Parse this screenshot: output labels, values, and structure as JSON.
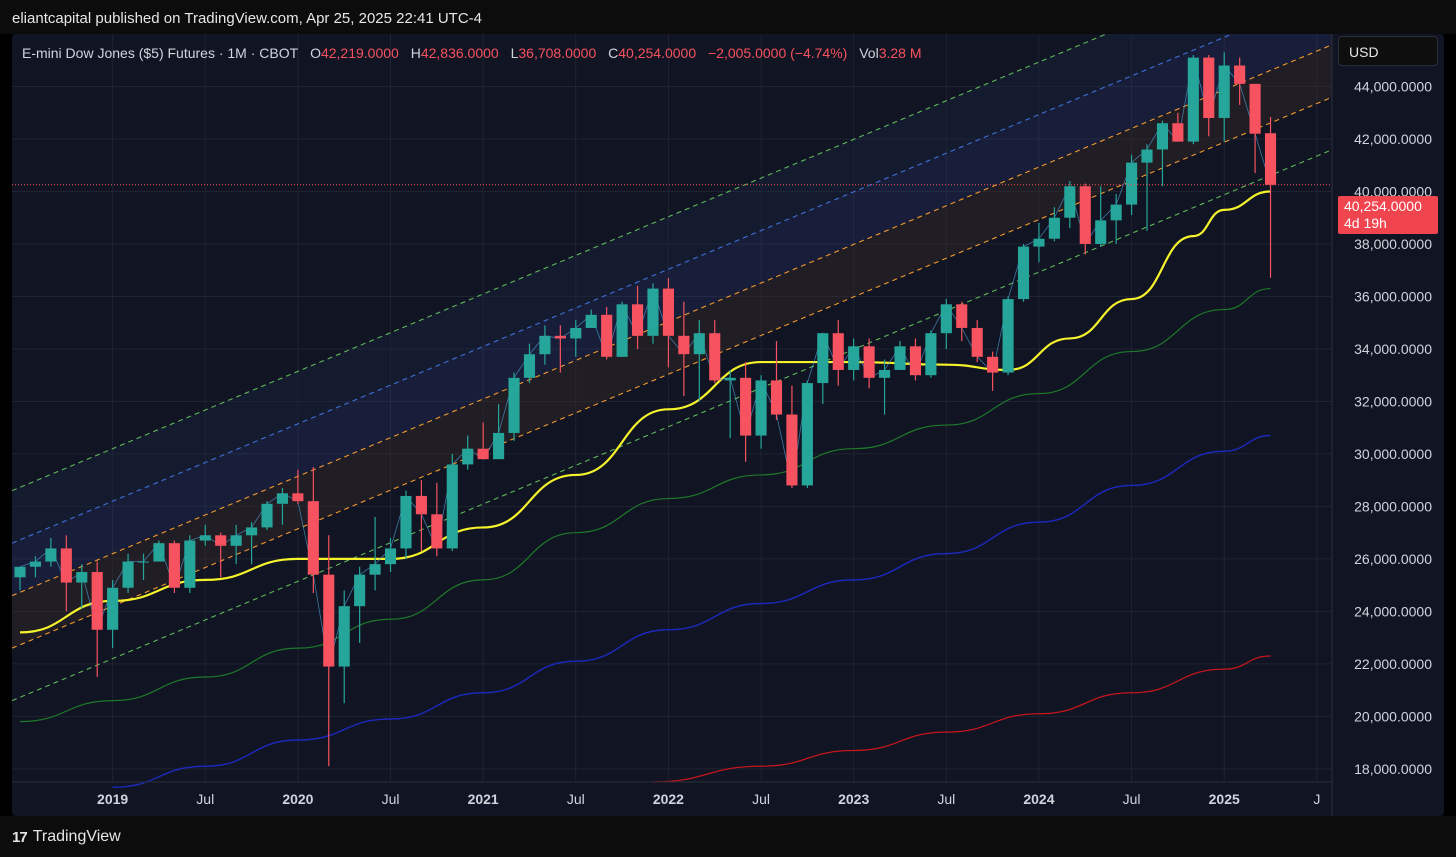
{
  "publisher_line": "eliantcapital published on TradingView.com, Apr 25, 2025 22:41 UTC-4",
  "legend": {
    "symbol": "E-mini Dow Jones ($5) Futures · 1M · CBOT",
    "open_label": "O",
    "open": "42,219.0000",
    "high_label": "H",
    "high": "42,836.0000",
    "low_label": "L",
    "low": "36,708.0000",
    "close_label": "C",
    "close": "40,254.0000",
    "change": "−2,005.0000 (−4.74%)",
    "vol_label": "Vol",
    "vol": "3.28 M"
  },
  "currency_button": "USD",
  "last_price_tag": {
    "price": "40,254.0000",
    "countdown": "4d 19h"
  },
  "branding": "TradingView",
  "colors": {
    "up": "#26a69a",
    "down": "#f7525f",
    "ma_yellow": "#f5f32c",
    "ma_green": "#1e7a2a",
    "ma_blue": "#1b28b8",
    "ma_red": "#c4161c",
    "channel_outer": "#5db85a",
    "channel_mid": "#3f6fd8",
    "channel_inner": "#f29a2e",
    "background": "#111422"
  },
  "chart_data": {
    "type": "candlestick",
    "title": "E-mini Dow Jones ($5) Futures · 1M · CBOT",
    "y_ticks": [
      "44,000.0000",
      "42,000.0000",
      "40,000.0000",
      "38,000.0000",
      "36,000.0000",
      "34,000.0000",
      "32,000.0000",
      "30,000.0000",
      "28,000.0000",
      "26,000.0000",
      "24,000.0000",
      "22,000.0000",
      "20,000.0000",
      "18,000.0000"
    ],
    "y_tick_values": [
      44000,
      42000,
      40000,
      38000,
      36000,
      34000,
      32000,
      30000,
      28000,
      26000,
      24000,
      22000,
      20000,
      18000
    ],
    "ylim": [
      17500,
      46000
    ],
    "x_ticks": [
      {
        "label": "2019",
        "year": true,
        "date": "2019-01"
      },
      {
        "label": "Jul",
        "year": false,
        "date": "2019-07"
      },
      {
        "label": "2020",
        "year": true,
        "date": "2020-01"
      },
      {
        "label": "Jul",
        "year": false,
        "date": "2020-07"
      },
      {
        "label": "2021",
        "year": true,
        "date": "2021-01"
      },
      {
        "label": "Jul",
        "year": false,
        "date": "2021-07"
      },
      {
        "label": "2022",
        "year": true,
        "date": "2022-01"
      },
      {
        "label": "Jul",
        "year": false,
        "date": "2022-07"
      },
      {
        "label": "2023",
        "year": true,
        "date": "2023-01"
      },
      {
        "label": "Jul",
        "year": false,
        "date": "2023-07"
      },
      {
        "label": "2024",
        "year": true,
        "date": "2024-01"
      },
      {
        "label": "Jul",
        "year": false,
        "date": "2024-07"
      },
      {
        "label": "2025",
        "year": true,
        "date": "2025-01"
      },
      {
        "label": "J",
        "year": false,
        "date": "2025-07"
      }
    ],
    "x_range": [
      "2018-07",
      "2025-08"
    ],
    "candles": [
      {
        "t": "2018-07",
        "o": 25300,
        "h": 25600,
        "l": 24800,
        "c": 25700
      },
      {
        "t": "2018-08",
        "o": 25700,
        "h": 26100,
        "l": 25300,
        "c": 25900
      },
      {
        "t": "2018-09",
        "o": 25900,
        "h": 26800,
        "l": 25700,
        "c": 26400
      },
      {
        "t": "2018-10",
        "o": 26400,
        "h": 26900,
        "l": 24000,
        "c": 25100
      },
      {
        "t": "2018-11",
        "o": 25100,
        "h": 25800,
        "l": 24100,
        "c": 25500
      },
      {
        "t": "2018-12",
        "o": 25500,
        "h": 25900,
        "l": 21500,
        "c": 23300
      },
      {
        "t": "2019-01",
        "o": 23300,
        "h": 25200,
        "l": 22600,
        "c": 24900
      },
      {
        "t": "2019-02",
        "o": 24900,
        "h": 26200,
        "l": 24700,
        "c": 25900
      },
      {
        "t": "2019-03",
        "o": 25900,
        "h": 26200,
        "l": 25200,
        "c": 25900
      },
      {
        "t": "2019-04",
        "o": 25900,
        "h": 26700,
        "l": 25900,
        "c": 26600
      },
      {
        "t": "2019-05",
        "o": 26600,
        "h": 26700,
        "l": 24700,
        "c": 24900
      },
      {
        "t": "2019-06",
        "o": 24900,
        "h": 26900,
        "l": 24700,
        "c": 26700
      },
      {
        "t": "2019-07",
        "o": 26700,
        "h": 27300,
        "l": 26500,
        "c": 26900
      },
      {
        "t": "2019-08",
        "o": 26900,
        "h": 27000,
        "l": 25300,
        "c": 26500
      },
      {
        "t": "2019-09",
        "o": 26500,
        "h": 27300,
        "l": 25800,
        "c": 26900
      },
      {
        "t": "2019-10",
        "o": 26900,
        "h": 27400,
        "l": 25800,
        "c": 27200
      },
      {
        "t": "2019-11",
        "o": 27200,
        "h": 28200,
        "l": 27100,
        "c": 28100
      },
      {
        "t": "2019-12",
        "o": 28100,
        "h": 28700,
        "l": 27300,
        "c": 28500
      },
      {
        "t": "2020-01",
        "o": 28500,
        "h": 29400,
        "l": 28100,
        "c": 28200
      },
      {
        "t": "2020-02",
        "o": 28200,
        "h": 29500,
        "l": 24700,
        "c": 25400
      },
      {
        "t": "2020-03",
        "o": 25400,
        "h": 26900,
        "l": 18100,
        "c": 21900
      },
      {
        "t": "2020-04",
        "o": 21900,
        "h": 24800,
        "l": 20500,
        "c": 24200
      },
      {
        "t": "2020-05",
        "o": 24200,
        "h": 25700,
        "l": 22800,
        "c": 25400
      },
      {
        "t": "2020-06",
        "o": 25400,
        "h": 27600,
        "l": 24800,
        "c": 25800
      },
      {
        "t": "2020-07",
        "o": 25800,
        "h": 26800,
        "l": 25500,
        "c": 26400
      },
      {
        "t": "2020-08",
        "o": 26400,
        "h": 28600,
        "l": 26000,
        "c": 28400
      },
      {
        "t": "2020-09",
        "o": 28400,
        "h": 29000,
        "l": 26300,
        "c": 27700
      },
      {
        "t": "2020-10",
        "o": 27700,
        "h": 28900,
        "l": 26100,
        "c": 26400
      },
      {
        "t": "2020-11",
        "o": 26400,
        "h": 30000,
        "l": 26300,
        "c": 29600
      },
      {
        "t": "2020-12",
        "o": 29600,
        "h": 30700,
        "l": 29400,
        "c": 30200
      },
      {
        "t": "2021-01",
        "o": 30200,
        "h": 31200,
        "l": 29800,
        "c": 29800
      },
      {
        "t": "2021-02",
        "o": 29800,
        "h": 31900,
        "l": 29900,
        "c": 30800
      },
      {
        "t": "2021-03",
        "o": 30800,
        "h": 33100,
        "l": 30500,
        "c": 32900
      },
      {
        "t": "2021-04",
        "o": 32900,
        "h": 34200,
        "l": 32700,
        "c": 33800
      },
      {
        "t": "2021-05",
        "o": 33800,
        "h": 34900,
        "l": 33400,
        "c": 34500
      },
      {
        "t": "2021-06",
        "o": 34500,
        "h": 34900,
        "l": 33100,
        "c": 34400
      },
      {
        "t": "2021-07",
        "o": 34400,
        "h": 35100,
        "l": 33700,
        "c": 34800
      },
      {
        "t": "2021-08",
        "o": 34800,
        "h": 35500,
        "l": 34800,
        "c": 35300
      },
      {
        "t": "2021-09",
        "o": 35300,
        "h": 35600,
        "l": 33600,
        "c": 33700
      },
      {
        "t": "2021-10",
        "o": 33700,
        "h": 35800,
        "l": 33700,
        "c": 35700
      },
      {
        "t": "2021-11",
        "o": 35700,
        "h": 36400,
        "l": 34000,
        "c": 34500
      },
      {
        "t": "2021-12",
        "o": 34500,
        "h": 36500,
        "l": 34200,
        "c": 36300
      },
      {
        "t": "2022-01",
        "o": 36300,
        "h": 36700,
        "l": 33300,
        "c": 34500
      },
      {
        "t": "2022-02",
        "o": 34500,
        "h": 35800,
        "l": 32200,
        "c": 33800
      },
      {
        "t": "2022-03",
        "o": 33800,
        "h": 35100,
        "l": 32000,
        "c": 34600
      },
      {
        "t": "2022-04",
        "o": 34600,
        "h": 35100,
        "l": 32700,
        "c": 32800
      },
      {
        "t": "2022-05",
        "o": 32800,
        "h": 33200,
        "l": 30600,
        "c": 32900
      },
      {
        "t": "2022-06",
        "o": 32900,
        "h": 33500,
        "l": 29700,
        "c": 30700
      },
      {
        "t": "2022-07",
        "o": 30700,
        "h": 33000,
        "l": 30200,
        "c": 32800
      },
      {
        "t": "2022-08",
        "o": 32800,
        "h": 34300,
        "l": 31300,
        "c": 31500
      },
      {
        "t": "2022-09",
        "o": 31500,
        "h": 32600,
        "l": 28700,
        "c": 28800
      },
      {
        "t": "2022-10",
        "o": 28800,
        "h": 32800,
        "l": 28700,
        "c": 32700
      },
      {
        "t": "2022-11",
        "o": 32700,
        "h": 34600,
        "l": 31900,
        "c": 34600
      },
      {
        "t": "2022-12",
        "o": 34600,
        "h": 35100,
        "l": 32600,
        "c": 33200
      },
      {
        "t": "2023-01",
        "o": 33200,
        "h": 34400,
        "l": 32800,
        "c": 34100
      },
      {
        "t": "2023-02",
        "o": 34100,
        "h": 34400,
        "l": 32500,
        "c": 32900
      },
      {
        "t": "2023-03",
        "o": 32900,
        "h": 33600,
        "l": 31500,
        "c": 33200
      },
      {
        "t": "2023-04",
        "o": 33200,
        "h": 34300,
        "l": 33200,
        "c": 34100
      },
      {
        "t": "2023-05",
        "o": 34100,
        "h": 34400,
        "l": 32800,
        "c": 33000
      },
      {
        "t": "2023-06",
        "o": 33000,
        "h": 34700,
        "l": 32900,
        "c": 34600
      },
      {
        "t": "2023-07",
        "o": 34600,
        "h": 35900,
        "l": 34000,
        "c": 35700
      },
      {
        "t": "2023-08",
        "o": 35700,
        "h": 35800,
        "l": 34300,
        "c": 34800
      },
      {
        "t": "2023-09",
        "o": 34800,
        "h": 35100,
        "l": 33500,
        "c": 33700
      },
      {
        "t": "2023-10",
        "o": 33700,
        "h": 33900,
        "l": 32400,
        "c": 33100
      },
      {
        "t": "2023-11",
        "o": 33100,
        "h": 36000,
        "l": 33000,
        "c": 35900
      },
      {
        "t": "2023-12",
        "o": 35900,
        "h": 38000,
        "l": 35800,
        "c": 37900
      },
      {
        "t": "2024-01",
        "o": 37900,
        "h": 38800,
        "l": 37300,
        "c": 38200
      },
      {
        "t": "2024-02",
        "o": 38200,
        "h": 39400,
        "l": 38100,
        "c": 39000
      },
      {
        "t": "2024-03",
        "o": 39000,
        "h": 40400,
        "l": 38600,
        "c": 40200
      },
      {
        "t": "2024-04",
        "o": 40200,
        "h": 40300,
        "l": 37600,
        "c": 38000
      },
      {
        "t": "2024-05",
        "o": 38000,
        "h": 40200,
        "l": 37900,
        "c": 38900
      },
      {
        "t": "2024-06",
        "o": 38900,
        "h": 39900,
        "l": 38000,
        "c": 39500
      },
      {
        "t": "2024-07",
        "o": 39500,
        "h": 41400,
        "l": 39100,
        "c": 41100
      },
      {
        "t": "2024-08",
        "o": 41100,
        "h": 41800,
        "l": 38500,
        "c": 41600
      },
      {
        "t": "2024-09",
        "o": 41600,
        "h": 42700,
        "l": 40200,
        "c": 42600
      },
      {
        "t": "2024-10",
        "o": 42600,
        "h": 43000,
        "l": 41900,
        "c": 41900
      },
      {
        "t": "2024-11",
        "o": 41900,
        "h": 45200,
        "l": 41800,
        "c": 45100
      },
      {
        "t": "2024-12",
        "o": 45100,
        "h": 45200,
        "l": 42100,
        "c": 42800
      },
      {
        "t": "2025-01",
        "o": 42800,
        "h": 45300,
        "l": 41900,
        "c": 44800
      },
      {
        "t": "2025-02",
        "o": 44800,
        "h": 45100,
        "l": 43300,
        "c": 44100
      },
      {
        "t": "2025-03",
        "o": 44100,
        "h": 44100,
        "l": 40700,
        "c": 42200
      },
      {
        "t": "2025-04",
        "o": 42219,
        "h": 42836,
        "l": 36708,
        "c": 40254
      }
    ],
    "moving_averages": [
      {
        "color": "#f5f32c",
        "width": 2.2,
        "points": [
          [
            "2018-07",
            23200
          ],
          [
            "2019-01",
            24400
          ],
          [
            "2019-07",
            25200
          ],
          [
            "2020-01",
            26000
          ],
          [
            "2020-07",
            26000
          ],
          [
            "2021-01",
            27200
          ],
          [
            "2021-07",
            29200
          ],
          [
            "2022-01",
            31700
          ],
          [
            "2022-07",
            33500
          ],
          [
            "2023-01",
            33500
          ],
          [
            "2023-07",
            33400
          ],
          [
            "2023-11",
            33200
          ],
          [
            "2024-03",
            34400
          ],
          [
            "2024-07",
            35900
          ],
          [
            "2024-11",
            38300
          ],
          [
            "2025-01",
            39300
          ],
          [
            "2025-04",
            40000
          ]
        ]
      },
      {
        "color": "#1e7a2a",
        "width": 1.2,
        "points": [
          [
            "2018-07",
            19800
          ],
          [
            "2019-01",
            20600
          ],
          [
            "2019-07",
            21500
          ],
          [
            "2020-01",
            22600
          ],
          [
            "2020-07",
            23700
          ],
          [
            "2021-01",
            25200
          ],
          [
            "2021-07",
            27000
          ],
          [
            "2022-01",
            28300
          ],
          [
            "2022-07",
            29200
          ],
          [
            "2023-01",
            30200
          ],
          [
            "2023-07",
            31100
          ],
          [
            "2024-01",
            32300
          ],
          [
            "2024-07",
            33900
          ],
          [
            "2025-01",
            35500
          ],
          [
            "2025-04",
            36300
          ]
        ]
      },
      {
        "color": "#1b28b8",
        "width": 1.5,
        "points": [
          [
            "2019-01",
            17300
          ],
          [
            "2019-07",
            18100
          ],
          [
            "2020-01",
            19100
          ],
          [
            "2020-07",
            19900
          ],
          [
            "2021-01",
            20900
          ],
          [
            "2021-07",
            22100
          ],
          [
            "2022-01",
            23300
          ],
          [
            "2022-07",
            24300
          ],
          [
            "2023-01",
            25200
          ],
          [
            "2023-07",
            26200
          ],
          [
            "2024-01",
            27400
          ],
          [
            "2024-07",
            28800
          ],
          [
            "2025-01",
            30100
          ],
          [
            "2025-04",
            30700
          ]
        ]
      },
      {
        "color": "#c4161c",
        "width": 1.3,
        "points": [
          [
            "2021-12",
            17500
          ],
          [
            "2022-07",
            18100
          ],
          [
            "2023-01",
            18700
          ],
          [
            "2023-07",
            19400
          ],
          [
            "2024-01",
            20100
          ],
          [
            "2024-07",
            20900
          ],
          [
            "2025-01",
            21800
          ],
          [
            "2025-04",
            22300
          ]
        ]
      }
    ],
    "channel": {
      "slope_per_month": 247,
      "anchor_date": "2018-07",
      "lines": [
        {
          "base": 28600,
          "color": "#5db85a"
        },
        {
          "base": 26600,
          "color": "#3f6fd8"
        },
        {
          "base": 24600,
          "color": "#f29a2e"
        },
        {
          "base": 22600,
          "color": "#f29a2e"
        },
        {
          "base": 20600,
          "color": "#5db85a"
        }
      ],
      "end_date": "2025-08"
    },
    "last_price": 40254
  }
}
